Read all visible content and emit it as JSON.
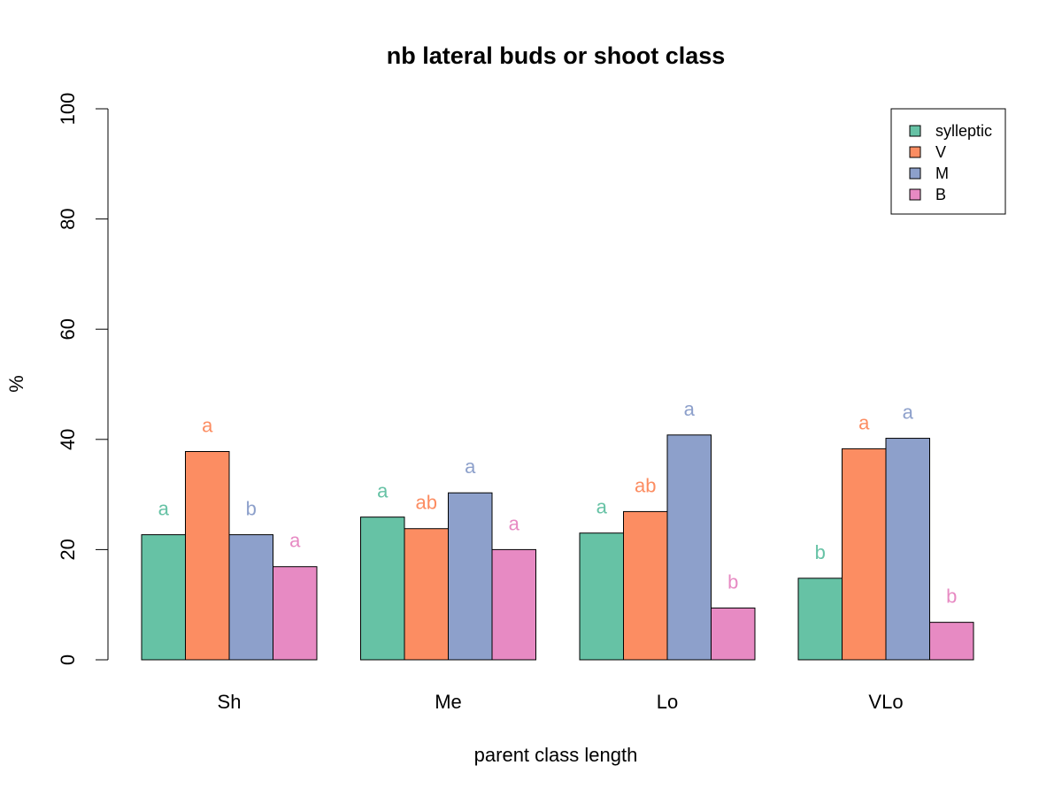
{
  "chart_data": {
    "type": "bar",
    "title": "nb lateral buds or shoot class",
    "xlabel": "parent class length",
    "ylabel": "%",
    "ylim": [
      0,
      100
    ],
    "yticks": [
      0,
      20,
      40,
      60,
      80,
      100
    ],
    "categories": [
      "Sh",
      "Me",
      "Lo",
      "VLo"
    ],
    "series": [
      {
        "name": "sylleptic",
        "color": "#66c2a5",
        "values": [
          22.7,
          25.9,
          23.0,
          14.8
        ],
        "labels": [
          "a",
          "a",
          "a",
          "b"
        ]
      },
      {
        "name": "V",
        "color": "#fc8d62",
        "values": [
          37.8,
          23.8,
          26.9,
          38.3
        ],
        "labels": [
          "a",
          "ab",
          "ab",
          "a"
        ]
      },
      {
        "name": "M",
        "color": "#8da0cb",
        "values": [
          22.7,
          30.3,
          40.8,
          40.2
        ],
        "labels": [
          "b",
          "a",
          "a",
          "a"
        ]
      },
      {
        "name": "B",
        "color": "#e78ac3",
        "values": [
          16.9,
          20.0,
          9.4,
          6.8
        ],
        "labels": [
          "a",
          "a",
          "b",
          "b"
        ]
      }
    ],
    "legend_position": "top-right",
    "grid": false
  }
}
